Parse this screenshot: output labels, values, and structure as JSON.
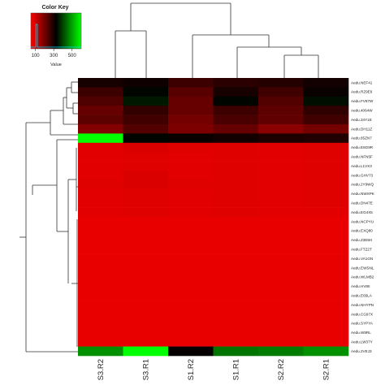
{
  "chart_data": {
    "type": "heatmap",
    "title": "",
    "xlabel": "",
    "ylabel": "",
    "columns": [
      "S3.R2",
      "S3.R1",
      "S1.R2",
      "S1.R1",
      "S2.R2",
      "S2.R1"
    ],
    "rows": [
      "Aedu.NEF41",
      "Aedu.RZ9E6",
      "Aedu.FV87W",
      "Aedu.4064W",
      "Aedu.34Y1E",
      "Aedu.DH11Z",
      "Aedu.65ZN7",
      "Aedu.E6G9R",
      "Aedu.NFN5F",
      "Aedu.L1VX3",
      "Aedu.GHV73",
      "Aedu.2Y9WQ",
      "Aedu.NWXPK",
      "Aedu.DN47E",
      "Aedu.EG4X5",
      "Aedu.NCPYU",
      "Aedu.EXQ80",
      "Aedu.Z3E5H",
      "Aedu.FTZ2T",
      "Aedu.VA1GN",
      "Aedu.EWSNL",
      "Aedu.WLMB2",
      "Aedu.HV8II",
      "Aedu.E65LA",
      "Aedu.NHYPN",
      "Aedu.CG97X",
      "Aedu.SYPYA",
      "Aedu.W8RL",
      "Aedu.LW37Y",
      "Aedu.2VEJ3"
    ],
    "values": [
      [
        300,
        310,
        260,
        280,
        285,
        305
      ],
      [
        260,
        330,
        230,
        300,
        255,
        315
      ],
      [
        240,
        350,
        215,
        330,
        235,
        340
      ],
      [
        215,
        270,
        215,
        260,
        225,
        275
      ],
      [
        225,
        255,
        200,
        245,
        220,
        255
      ],
      [
        185,
        235,
        190,
        215,
        175,
        200
      ],
      [
        600,
        330,
        315,
        305,
        295,
        290
      ],
      [
        80,
        90,
        85,
        85,
        80,
        85
      ],
      [
        80,
        85,
        80,
        85,
        80,
        85
      ],
      [
        80,
        85,
        80,
        85,
        80,
        85
      ],
      [
        80,
        90,
        80,
        85,
        80,
        85
      ],
      [
        85,
        90,
        85,
        85,
        80,
        85
      ],
      [
        80,
        85,
        80,
        85,
        80,
        85
      ],
      [
        80,
        85,
        80,
        85,
        80,
        85
      ],
      [
        80,
        85,
        80,
        85,
        80,
        80
      ],
      [
        75,
        75,
        75,
        75,
        75,
        75
      ],
      [
        75,
        75,
        75,
        75,
        75,
        75
      ],
      [
        75,
        75,
        75,
        75,
        75,
        75
      ],
      [
        75,
        75,
        75,
        75,
        75,
        75
      ],
      [
        75,
        75,
        75,
        75,
        75,
        75
      ],
      [
        75,
        75,
        75,
        75,
        75,
        75
      ],
      [
        75,
        75,
        75,
        75,
        75,
        75
      ],
      [
        75,
        75,
        75,
        75,
        75,
        75
      ],
      [
        75,
        75,
        75,
        75,
        75,
        75
      ],
      [
        75,
        75,
        75,
        75,
        75,
        75
      ],
      [
        75,
        75,
        75,
        75,
        75,
        75
      ],
      [
        75,
        75,
        75,
        75,
        75,
        75
      ],
      [
        75,
        75,
        75,
        75,
        75,
        75
      ],
      [
        75,
        75,
        75,
        75,
        75,
        75
      ],
      [
        480,
        600,
        320,
        450,
        460,
        480
      ]
    ],
    "color_scale": {
      "low": "#ff0000",
      "mid": "#000000",
      "high": "#00ff00",
      "domain": [
        50,
        600
      ]
    },
    "color_key": {
      "title": "Color Key",
      "xlabel": "Value",
      "ticks": [
        100,
        300,
        500
      ]
    },
    "row_dendrogram": true,
    "column_dendrogram": true,
    "legend_position": "top-left",
    "grid": false
  }
}
